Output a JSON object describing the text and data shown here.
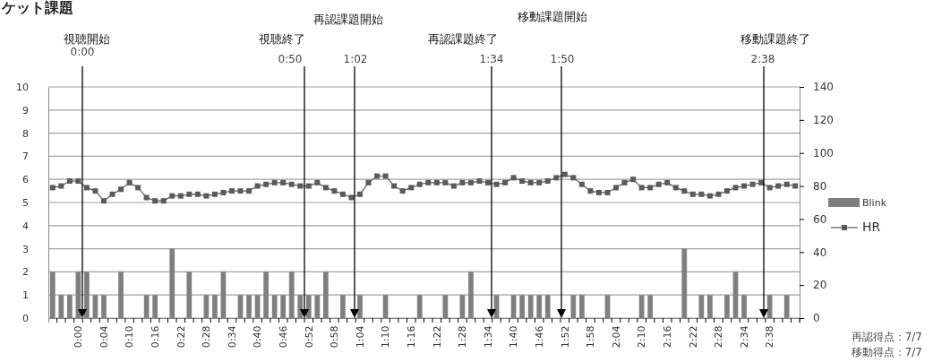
{
  "chart_data": {
    "type": "bar",
    "title": "ケット課題",
    "categories": [
      null,
      null,
      null,
      "0:00",
      null,
      null,
      "0:04",
      null,
      null,
      "0:10",
      null,
      null,
      "0:16",
      null,
      null,
      "0:22",
      null,
      null,
      "0:28",
      null,
      null,
      "0:34",
      null,
      null,
      "0:40",
      null,
      null,
      "0:46",
      null,
      null,
      "0:52",
      null,
      null,
      "0:58",
      null,
      null,
      "1:04",
      null,
      null,
      "1:10",
      null,
      null,
      "1:16",
      null,
      null,
      "1:22",
      null,
      null,
      "1:28",
      null,
      null,
      "1:34",
      null,
      null,
      "1:40",
      null,
      null,
      "1:46",
      null,
      null,
      "1:52",
      null,
      null,
      "1:58",
      null,
      null,
      "2:04",
      null,
      null,
      "2:10",
      null,
      null,
      "2:16",
      null,
      null,
      "2:22",
      null,
      null,
      "2:28",
      null,
      null,
      "2:34",
      null,
      null,
      "2:38",
      null,
      null,
      null
    ],
    "series": [
      {
        "name": "Blink",
        "color": "#7f7f7f",
        "values": [
          2,
          1,
          1,
          2,
          2,
          1,
          1,
          0,
          2,
          0,
          0,
          1,
          1,
          0,
          3,
          0,
          2,
          0,
          1,
          1,
          2,
          0,
          1,
          1,
          1,
          2,
          1,
          1,
          2,
          1,
          1,
          1,
          2,
          0,
          1,
          0,
          1,
          0,
          0,
          1,
          0,
          0,
          0,
          1,
          0,
          0,
          1,
          0,
          1,
          2,
          0,
          0,
          1,
          0,
          1,
          1,
          1,
          1,
          1,
          0,
          0,
          1,
          1,
          0,
          0,
          1,
          0,
          0,
          0,
          1,
          1,
          0,
          0,
          0,
          3,
          0,
          1,
          1,
          0,
          1,
          2,
          1,
          0,
          0,
          1,
          0,
          1,
          0
        ]
      },
      {
        "name": "HR",
        "type": "line",
        "axis": "y2",
        "color": "#5a5a5a",
        "values": [
          79,
          80,
          83,
          83,
          79,
          77,
          71,
          75,
          78,
          82,
          79,
          73,
          71,
          71,
          74,
          74,
          75,
          75,
          74,
          75,
          76,
          77,
          77,
          77,
          80,
          81,
          82,
          82,
          81,
          80,
          80,
          82,
          79,
          77,
          75,
          73,
          75,
          82,
          86,
          86,
          80,
          77,
          79,
          81,
          82,
          82,
          82,
          80,
          82,
          82,
          83,
          82,
          81,
          82,
          85,
          83,
          82,
          82,
          83,
          85,
          87,
          85,
          81,
          77,
          76,
          76,
          79,
          82,
          84,
          79,
          79,
          81,
          82,
          79,
          77,
          75,
          75,
          74,
          75,
          77,
          79,
          80,
          81,
          82,
          79,
          80,
          81,
          80
        ]
      }
    ],
    "ylim": [
      0,
      10
    ],
    "yticks": [
      0,
      1,
      2,
      3,
      4,
      5,
      6,
      7,
      8,
      9,
      10
    ],
    "y2lim": [
      0,
      140
    ],
    "y2ticks": [
      0,
      20,
      40,
      60,
      80,
      100,
      120,
      140
    ],
    "grid": "y",
    "legend": "right",
    "marker": "square",
    "annotations": [
      "視聴開始",
      "0:00",
      "視聴終了",
      "0:50",
      "再認課題開始",
      "1:02",
      "再認課題終了",
      "1:34",
      "移動課題開始",
      "1:50",
      "移動課題終了",
      "2:38",
      "再認得点：7/7",
      "移動得点：7/7"
    ]
  }
}
